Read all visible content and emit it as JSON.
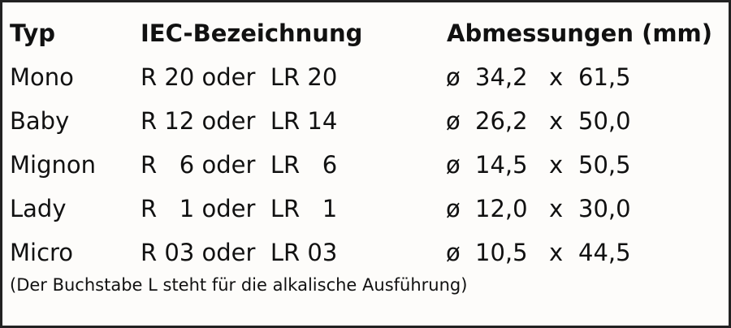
{
  "headers": {
    "type": "Typ",
    "iec": "IEC-Bezeichnung",
    "dims": "Abmessungen (mm)"
  },
  "rows": [
    {
      "type": "Mono",
      "iec": "R 20 oder  LR 20",
      "dia_symbol": "ø",
      "diameter": "34,2",
      "times": "x",
      "length": "61,5"
    },
    {
      "type": "Baby",
      "iec": "R 12 oder  LR 14",
      "dia_symbol": "ø",
      "diameter": "26,2",
      "times": "x",
      "length": "50,0"
    },
    {
      "type": "Mignon",
      "iec": "R   6 oder  LR   6",
      "dia_symbol": "ø",
      "diameter": "14,5",
      "times": "x",
      "length": "50,5"
    },
    {
      "type": "Lady",
      "iec": "R   1 oder  LR   1",
      "dia_symbol": "ø",
      "diameter": "12,0",
      "times": "x",
      "length": "30,0"
    },
    {
      "type": "Micro",
      "iec": "R 03 oder  LR 03",
      "dia_symbol": "ø",
      "diameter": "10,5",
      "times": "x",
      "length": "44,5"
    }
  ],
  "footnote": "(Der Buchstabe L steht für die alkalische Ausführung)"
}
